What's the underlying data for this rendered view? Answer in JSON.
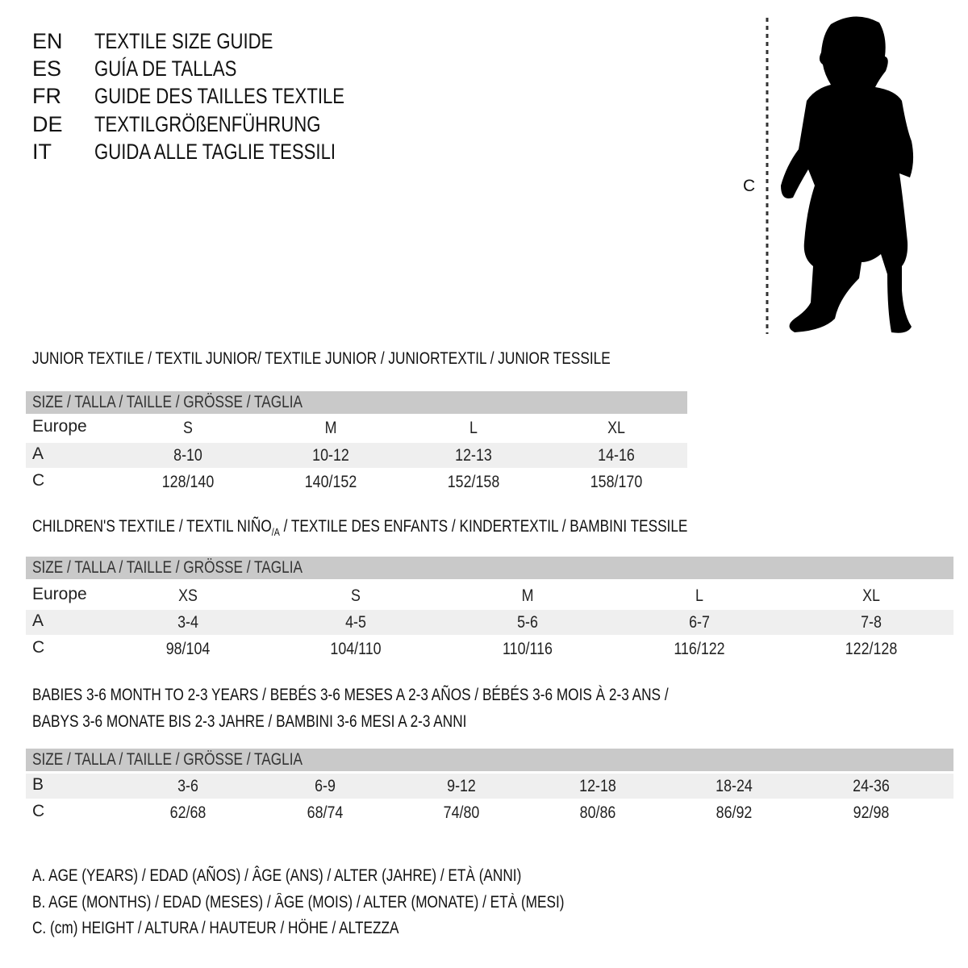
{
  "header": {
    "lines": [
      {
        "code": "EN",
        "text": "TEXTILE SIZE GUIDE"
      },
      {
        "code": "ES",
        "text": "GUÍA DE TALLAS"
      },
      {
        "code": "FR",
        "text": "GUIDE DES TAILLES TEXTILE"
      },
      {
        "code": "DE",
        "text": "TEXTILGRÖßENFÜHRUNG"
      },
      {
        "code": "IT",
        "text": "GUIDA ALLE TAGLIE TESSILI"
      }
    ]
  },
  "figure": {
    "label": "C",
    "icon": "child-silhouette-icon"
  },
  "junior": {
    "title": "JUNIOR TEXTILE / TEXTIL JUNIOR/ TEXTILE JUNIOR / JUNIORTEXTIL / JUNIOR TESSILE",
    "header": "SIZE / TALLA / TAILLE / GRÖSSE / TAGLIA",
    "rows": [
      {
        "label": "Europe",
        "values": [
          "S",
          "M",
          "L",
          "XL"
        ]
      },
      {
        "label": "A",
        "values": [
          "8-10",
          "10-12",
          "12-13",
          "14-16"
        ]
      },
      {
        "label": "C",
        "values": [
          "128/140",
          "140/152",
          "152/158",
          "158/170"
        ]
      }
    ]
  },
  "children": {
    "title_pre": "CHILDREN'S TEXTILE / TEXTIL NIÑO",
    "title_sub": "/A",
    "title_post": " / TEXTILE DES ENFANTS / KINDERTEXTIL / BAMBINI TESSILE",
    "header": "SIZE / TALLA / TAILLE / GRÖSSE / TAGLIA",
    "rows": [
      {
        "label": "Europe",
        "values": [
          "XS",
          "S",
          "M",
          "L",
          "XL"
        ]
      },
      {
        "label": "A",
        "values": [
          "3-4",
          "4-5",
          "5-6",
          "6-7",
          "7-8"
        ]
      },
      {
        "label": "C",
        "values": [
          "98/104",
          "104/110",
          "110/116",
          "116/122",
          "122/128"
        ]
      }
    ]
  },
  "babies": {
    "title_line1": "BABIES 3-6 MONTH TO 2-3 YEARS / BEBÉS 3-6 MESES A 2-3 AÑOS / BÉBÉS 3-6 MOIS À 2-3 ANS /",
    "title_line2": "BABYS 3-6 MONATE BIS 2-3 JAHRE / BAMBINI 3-6 MESI A 2-3 ANNI",
    "header": "SIZE / TALLA / TAILLE / GRÖSSE / TAGLIA",
    "rows": [
      {
        "label": "B",
        "values": [
          "3-6",
          "6-9",
          "9-12",
          "12-18",
          "18-24",
          "24-36"
        ]
      },
      {
        "label": "C",
        "values": [
          "62/68",
          "68/74",
          "74/80",
          "80/86",
          "86/92",
          "92/98"
        ]
      }
    ]
  },
  "legend": [
    "A. AGE (YEARS) / EDAD (AÑOS) / ÂGE (ANS) / ALTER (JAHRE) / ETÀ (ANNI)",
    "B. AGE (MONTHS) / EDAD (MESES) / ÂGE (MOIS) / ALTER (MONATE) / ETÀ (MESI)",
    "C. (cm) HEIGHT / ALTURA / HAUTEUR / HÖHE / ALTEZZA"
  ],
  "colors": {
    "header_band": "#c9c9c9",
    "row_band": "#efefef",
    "text": "#111111"
  }
}
